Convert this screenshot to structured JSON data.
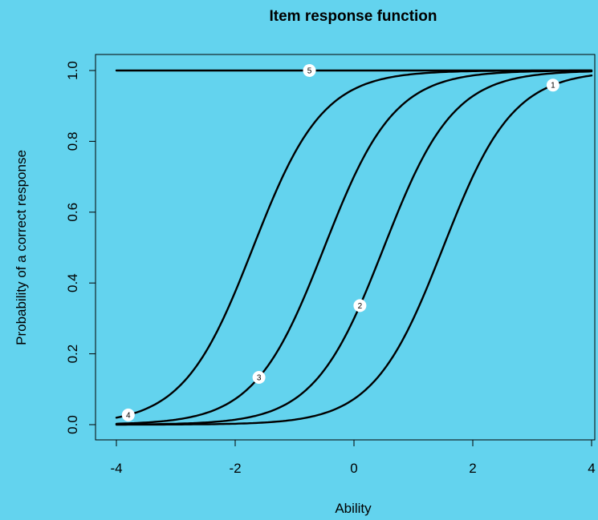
{
  "chart_data": {
    "type": "line",
    "title": "Item response function",
    "xlabel": "Ability",
    "ylabel": "Probability of a correct response",
    "xlim": [
      -4,
      4
    ],
    "ylim": [
      0,
      1
    ],
    "x_ticks": [
      -4,
      -2,
      0,
      2,
      4
    ],
    "x_tick_labels": [
      "-4",
      "-2",
      "0",
      "2",
      "4"
    ],
    "y_ticks": [
      0,
      0.2,
      0.4,
      0.6,
      0.8,
      1.0
    ],
    "y_tick_labels": [
      "0.0",
      "0.2",
      "0.4",
      "0.6",
      "0.8",
      "1.0"
    ],
    "grid": false,
    "colors": {
      "background": "#63d3ee",
      "line": "#000000",
      "marker": "#ffffff"
    },
    "series": [
      {
        "label": "1",
        "difficulty": 1.5,
        "discrimination": 1.0,
        "label_at_x": 3.35
      },
      {
        "label": "2",
        "difficulty": 0.5,
        "discrimination": 1.0,
        "label_at_x": 0.1
      },
      {
        "label": "3",
        "difficulty": -0.5,
        "discrimination": 1.0,
        "label_at_x": -1.6
      },
      {
        "label": "4",
        "difficulty": -1.7,
        "discrimination": 1.0,
        "label_at_x": -3.8
      },
      {
        "label": "5",
        "difficulty": -20,
        "discrimination": 1.0,
        "label_at_x": -0.75
      }
    ]
  }
}
